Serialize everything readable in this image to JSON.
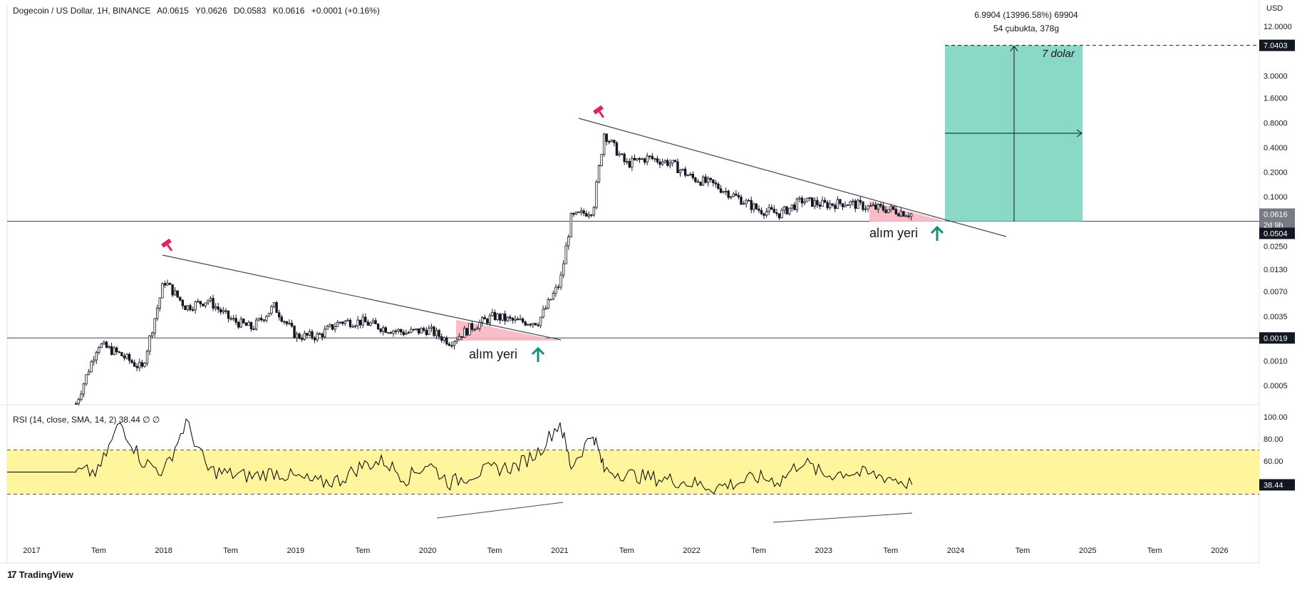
{
  "header": {
    "symbol": "Dogecoin / US Dollar, 1H, BINANCE",
    "open": "A0.0615",
    "high": "Y0.0626",
    "low": "D0.0583",
    "close": "K0.0616",
    "change": "+0.0001 (+0.16%)"
  },
  "currency_label": "USD",
  "price_axis_ticks": [
    "12.0000",
    "3.0000",
    "1.6000",
    "0.8000",
    "0.4000",
    "0.2000",
    "0.1000",
    "0.0250",
    "0.0130",
    "0.0070",
    "0.0035",
    "0.0010",
    "0.0005"
  ],
  "price_badges": {
    "target": "7.0403",
    "current": "0.0616",
    "countdown": "2d 9h",
    "support_top": "0.0504",
    "support_bottom": "0.0019"
  },
  "measure": {
    "line1": "6.9904 (13996.58%) 69904",
    "line2": "54 çubukta, 378g"
  },
  "annotations": {
    "target_text": "7 dolar",
    "buy_zone_1": "alım yeri",
    "buy_zone_2": "alım yeri"
  },
  "rsi": {
    "header": "RSI (14, close, SMA, 14, 2)",
    "value": "38.44",
    "extra": "∅ ∅",
    "ticks": [
      "100.00",
      "80.00",
      "60.00",
      "38.44"
    ],
    "band_color": "#fff59d",
    "line_color": "#000000"
  },
  "time_axis": [
    "2017",
    "Tem",
    "2018",
    "Tem",
    "2019",
    "Tem",
    "2020",
    "Tem",
    "2021",
    "Tem",
    "2022",
    "Tem",
    "2023",
    "Tem",
    "2024",
    "Tem",
    "2025",
    "Tem",
    "2026"
  ],
  "branding": {
    "name": "TradingView"
  },
  "colors": {
    "buy_zone": "#f8b6c3",
    "target_box": "#8ad8c6",
    "arrow_green": "#12907a",
    "marker_pink": "#e0245e",
    "badge_bg": "#131722"
  },
  "chart_data": [
    {
      "type": "line",
      "title": "",
      "y_scale": "log",
      "ylim": [
        0.0003,
        20
      ],
      "x": [
        "2017-05",
        "2017-07",
        "2017-09",
        "2017-11",
        "2018-01",
        "2018-03",
        "2018-05",
        "2018-07",
        "2018-09",
        "2018-11",
        "2019-01",
        "2019-03",
        "2019-05",
        "2019-07",
        "2019-09",
        "2019-11",
        "2020-01",
        "2020-03",
        "2020-05",
        "2020-07",
        "2020-09",
        "2020-11",
        "2021-01",
        "2021-02",
        "2021-04",
        "2021-05",
        "2021-07",
        "2021-09",
        "2021-11",
        "2022-01",
        "2022-03",
        "2022-05",
        "2022-07",
        "2022-09",
        "2022-11",
        "2023-01",
        "2023-03",
        "2023-05",
        "2023-07",
        "2023-09"
      ],
      "series": [
        {
          "values": [
            0.0003,
            0.0016,
            0.0012,
            0.0008,
            0.0095,
            0.0045,
            0.0055,
            0.0032,
            0.0025,
            0.0046,
            0.002,
            0.002,
            0.003,
            0.003,
            0.0025,
            0.0022,
            0.0024,
            0.0017,
            0.0026,
            0.0035,
            0.003,
            0.003,
            0.009,
            0.055,
            0.07,
            0.6,
            0.25,
            0.3,
            0.26,
            0.17,
            0.14,
            0.1,
            0.07,
            0.062,
            0.09,
            0.08,
            0.085,
            0.075,
            0.07,
            0.0616
          ]
        }
      ],
      "support_levels": [
        0.0504,
        0.0019
      ],
      "target_level": 7.0403
    },
    {
      "type": "line",
      "title": "",
      "ylim": [
        0,
        100
      ],
      "bands": [
        30,
        70
      ],
      "values": [
        50,
        50,
        95,
        60,
        50,
        95,
        52,
        48,
        46,
        50,
        45,
        40,
        43,
        56,
        60,
        44,
        58,
        40,
        48,
        53,
        55,
        68,
        95,
        55,
        85,
        52,
        48,
        45,
        43,
        40,
        36,
        40,
        45,
        42,
        60,
        47,
        50,
        48,
        45,
        38.44
      ]
    }
  ]
}
